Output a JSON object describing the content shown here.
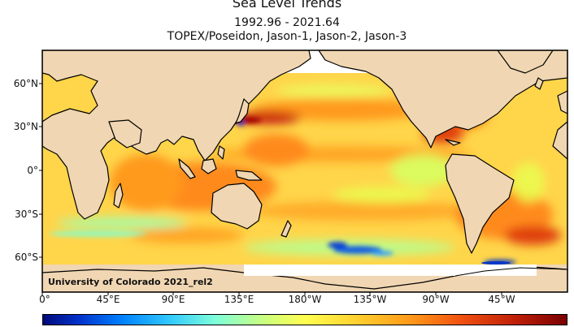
{
  "title": "Sea Level Trends",
  "subtitle_dates": "1992.96 - 2021.64",
  "subtitle_missions": "TOPEX/Poseidon, Jason-1, Jason-2, Jason-3",
  "credit": "University of Colorado 2021_rel2",
  "lat_labels": [
    "60°N",
    "30°N",
    "0°",
    "30°S",
    "60°S"
  ],
  "lon_labels": [
    "0°",
    "45°E",
    "90°E",
    "135°E",
    "180°W",
    "135°W",
    "90°W",
    "45°W"
  ],
  "colors": {
    "land": "#f0d6b2",
    "ocean_base": "#ffd54a",
    "high_trend": "#c81e0a",
    "low_trend": "#1040d0",
    "coastline": "#000000"
  },
  "colorbar": {
    "colormap": "jet",
    "tick_labels_visible": false
  }
}
